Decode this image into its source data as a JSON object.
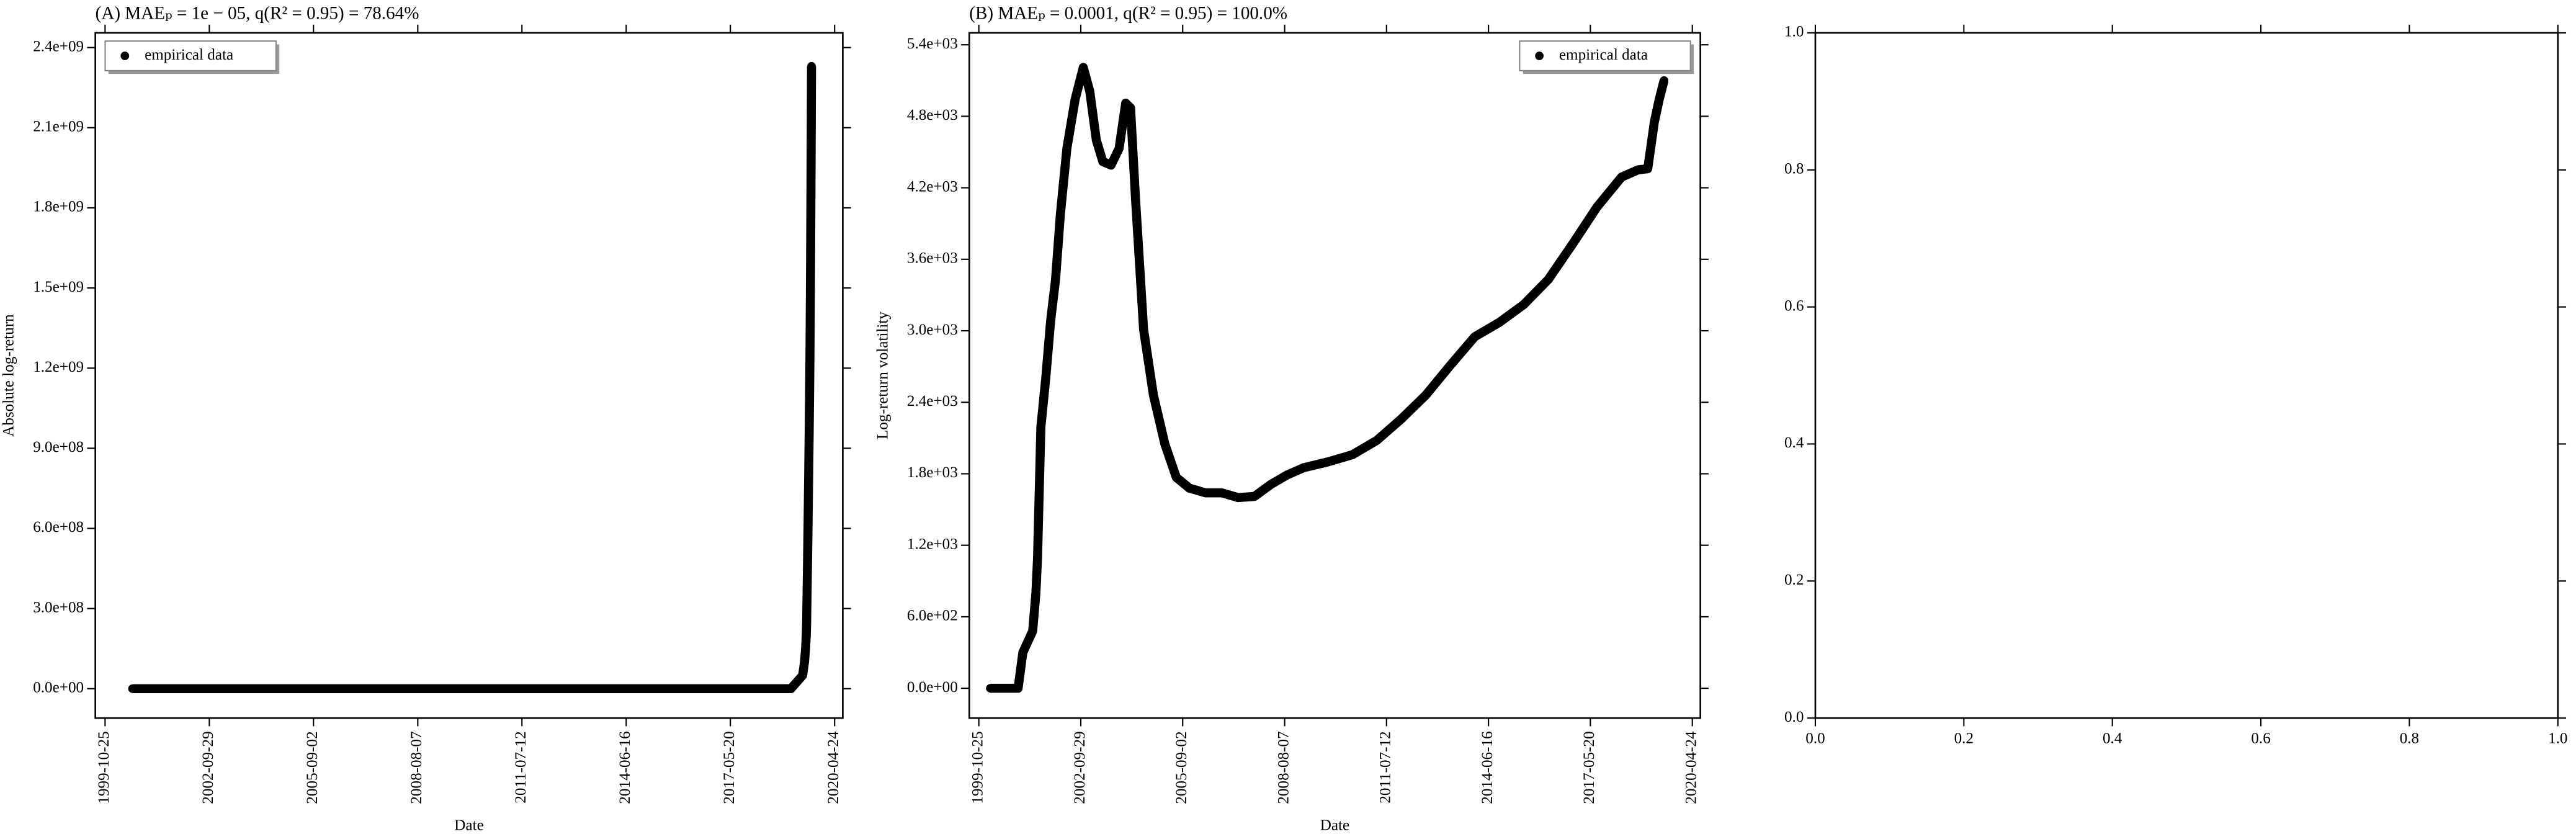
{
  "chart_data": [
    {
      "type": "scatter",
      "title": "(A) MAEₚ = 1e − 05, q(R² = 0.95) = 78.64%",
      "xlabel": "Date",
      "ylabel": "Absolute log-return",
      "legend": "upper left",
      "xlim": [
        "1999-07-17",
        "2020-07-17"
      ],
      "ylim": [
        -110000000,
        2455000000
      ],
      "xticks": [
        "1999-10-25",
        "2002-09-29",
        "2005-09-02",
        "2008-08-07",
        "2011-07-12",
        "2014-06-16",
        "2017-05-20",
        "2020-04-24"
      ],
      "yticks": [
        {
          "value": 0,
          "label": "0.0e+00"
        },
        {
          "value": 300000000,
          "label": "3.0e+08"
        },
        {
          "value": 600000000,
          "label": "6.0e+08"
        },
        {
          "value": 900000000,
          "label": "9.0e+08"
        },
        {
          "value": 1200000000,
          "label": "1.2e+09"
        },
        {
          "value": 1500000000,
          "label": "1.5e+09"
        },
        {
          "value": 1800000000,
          "label": "1.8e+09"
        },
        {
          "value": 2100000000,
          "label": "2.1e+09"
        },
        {
          "value": 2400000000,
          "label": "2.4e+09"
        }
      ],
      "series": [
        {
          "name": "empirical data",
          "color": "#000000",
          "x": [
            "2000-08-01",
            "2001-02-01",
            "2001-08-01",
            "2002-02-01",
            "2002-08-01",
            "2003-02-01",
            "2003-08-01",
            "2004-02-01",
            "2004-08-01",
            "2005-02-01",
            "2005-08-01",
            "2006-02-01",
            "2006-08-01",
            "2007-02-01",
            "2007-08-01",
            "2008-02-01",
            "2008-08-01",
            "2009-02-01",
            "2009-08-01",
            "2010-02-01",
            "2010-08-01",
            "2011-02-01",
            "2011-08-01",
            "2012-02-01",
            "2012-08-01",
            "2013-02-01",
            "2013-08-01",
            "2014-02-01",
            "2014-08-01",
            "2015-02-01",
            "2015-08-01",
            "2016-02-01",
            "2016-08-01",
            "2017-02-01",
            "2017-08-01",
            "2018-02-01",
            "2018-08-01",
            "2019-02-01",
            "2019-06-01",
            "2019-06-20",
            "2019-07-01",
            "2019-07-08",
            "2019-07-12",
            "2019-07-14",
            "2019-07-16",
            "2019-07-18",
            "2019-07-20",
            "2019-07-22",
            "2019-07-24",
            "2019-07-26",
            "2019-07-28",
            "2019-07-30",
            "2019-08-01",
            "2019-08-03",
            "2019-08-05",
            "2019-08-07",
            "2019-08-09",
            "2019-08-11",
            "2019-08-13",
            "2019-08-15",
            "2019-08-17",
            "2019-08-19",
            "2019-08-21",
            "2019-08-23",
            "2019-08-25",
            "2019-08-27",
            "2019-08-29",
            "2019-08-31"
          ],
          "values": [
            0,
            0,
            0,
            0,
            0,
            0,
            0,
            0,
            0,
            0,
            0,
            0,
            0,
            0,
            0,
            0,
            0,
            0,
            0,
            0,
            0,
            0,
            0,
            0,
            0,
            0,
            0,
            0,
            0,
            0,
            0,
            0,
            0,
            0,
            0,
            0,
            0,
            0,
            50000000,
            100000000,
            150000000,
            200000000,
            250000000,
            300000000,
            350000000,
            400000000,
            450000000,
            500000000,
            550000000,
            600000000,
            660000000,
            720000000,
            780000000,
            840000000,
            900000000,
            960000000,
            1030000000,
            1100000000,
            1170000000,
            1250000000,
            1350000000,
            1460000000,
            1580000000,
            1710000000,
            1850000000,
            2000000000,
            2160000000,
            2330000000
          ]
        }
      ]
    },
    {
      "type": "scatter",
      "title": "(B) MAEₚ = 0.0001, q(R² = 0.95) = 100.0%",
      "xlabel": "Date",
      "ylabel": "Log-return volatility",
      "legend": "upper right",
      "xlim": [
        "1999-07-17",
        "2020-07-17"
      ],
      "ylim": [
        -250,
        5500
      ],
      "xticks": [
        "1999-10-25",
        "2002-09-29",
        "2005-09-02",
        "2008-08-07",
        "2011-07-12",
        "2014-06-16",
        "2017-05-20",
        "2020-04-24"
      ],
      "yticks": [
        {
          "value": 0,
          "label": "0.0e+00"
        },
        {
          "value": 600,
          "label": "6.0e+02"
        },
        {
          "value": 1200,
          "label": "1.2e+03"
        },
        {
          "value": 1800,
          "label": "1.8e+03"
        },
        {
          "value": 2400,
          "label": "2.4e+03"
        },
        {
          "value": 3000,
          "label": "3.0e+03"
        },
        {
          "value": 3600,
          "label": "3.6e+03"
        },
        {
          "value": 4200,
          "label": "4.2e+03"
        },
        {
          "value": 4800,
          "label": "4.8e+03"
        },
        {
          "value": 5400,
          "label": "5.4e+03"
        }
      ],
      "series": [
        {
          "name": "empirical data",
          "color": "#000000",
          "x": [
            "2000-02-22",
            "2000-06-21",
            "2000-10-19",
            "2000-12-10",
            "2001-01-29",
            "2001-05-12",
            "2001-06-15",
            "2001-07-02",
            "2001-08-06",
            "2001-09-26",
            "2001-11-16",
            "2002-01-07",
            "2002-02-27",
            "2002-05-06",
            "2002-07-31",
            "2002-10-25",
            "2003-01-01",
            "2003-03-11",
            "2003-05-18",
            "2003-08-12",
            "2003-11-05",
            "2004-01-13",
            "2004-03-04",
            "2004-04-25",
            "2004-07-19",
            "2004-10-30",
            "2005-02-27",
            "2005-06-27",
            "2005-11-10",
            "2006-04-30",
            "2006-10-18",
            "2007-04-07",
            "2007-09-25",
            "2008-03-14",
            "2008-09-02",
            "2009-02-20",
            "2009-11-05",
            "2010-07-19",
            "2011-04-01",
            "2011-12-14",
            "2012-08-27",
            "2013-05-11",
            "2014-01-23",
            "2014-10-07",
            "2015-06-21",
            "2016-03-04",
            "2016-11-16",
            "2017-07-30",
            "2018-04-13",
            "2018-10-01",
            "2019-01-12",
            "2019-03-22",
            "2019-05-12",
            "2019-07-02"
          ],
          "values": [
            0,
            0,
            0,
            0,
            300,
            480,
            800,
            1090,
            2190,
            2600,
            3080,
            3430,
            3980,
            4530,
            4940,
            5210,
            5010,
            4600,
            4420,
            4390,
            4530,
            4910,
            4870,
            4110,
            3010,
            2460,
            2050,
            1770,
            1680,
            1640,
            1640,
            1600,
            1610,
            1710,
            1790,
            1850,
            1900,
            1960,
            2080,
            2260,
            2460,
            2710,
            2950,
            3070,
            3220,
            3430,
            3730,
            4040,
            4290,
            4350,
            4360,
            4750,
            4940,
            5100
          ]
        }
      ]
    },
    {
      "type": "scatter",
      "xlim": [
        0,
        1
      ],
      "ylim": [
        0,
        1
      ],
      "xticks": [
        {
          "value": 0,
          "label": "0.0"
        },
        {
          "value": 0.2,
          "label": "0.2"
        },
        {
          "value": 0.4,
          "label": "0.4"
        },
        {
          "value": 0.6,
          "label": "0.6"
        },
        {
          "value": 0.8,
          "label": "0.8"
        },
        {
          "value": 1,
          "label": "1.0"
        }
      ],
      "yticks": [
        {
          "value": 0,
          "label": "0.0"
        },
        {
          "value": 0.2,
          "label": "0.2"
        },
        {
          "value": 0.4,
          "label": "0.4"
        },
        {
          "value": 0.6,
          "label": "0.6"
        },
        {
          "value": 0.8,
          "label": "0.8"
        },
        {
          "value": 1,
          "label": "1.0"
        }
      ]
    }
  ]
}
